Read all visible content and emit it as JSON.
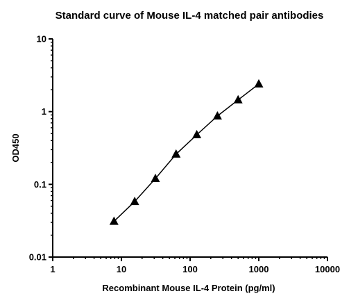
{
  "chart_data": {
    "type": "line",
    "title": "Standard curve of Mouse IL-4 matched pair antibodies",
    "xlabel": "Recombinant Mouse IL-4 Protein (pg/ml)",
    "ylabel": "OD450",
    "x_scale": "log",
    "y_scale": "log",
    "xlim": [
      1,
      10000
    ],
    "ylim": [
      0.01,
      10
    ],
    "x_ticks": [
      1,
      10,
      100,
      1000,
      10000
    ],
    "x_tick_labels": [
      "1",
      "10",
      "100",
      "1000",
      "10000"
    ],
    "y_ticks": [
      0.01,
      0.1,
      1,
      10
    ],
    "y_tick_labels": [
      "0.01",
      "0.1",
      "1",
      "10"
    ],
    "grid": false,
    "legend": "none",
    "marker": "triangle",
    "color": "#000000",
    "series": [
      {
        "x": [
          7.8,
          15.6,
          31.25,
          62.5,
          125,
          250,
          500,
          1000
        ],
        "y": [
          0.031,
          0.058,
          0.12,
          0.26,
          0.48,
          0.87,
          1.45,
          2.4
        ]
      }
    ]
  }
}
